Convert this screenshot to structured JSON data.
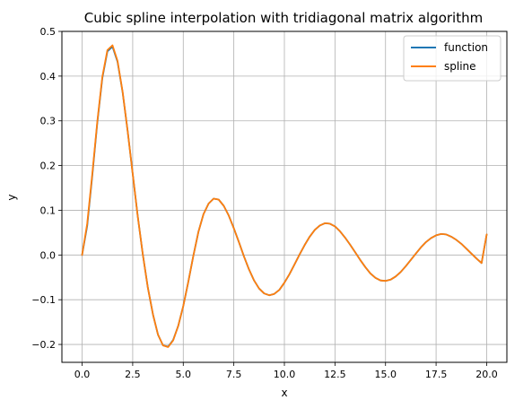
{
  "chart_data": {
    "type": "line",
    "title": "Cubic spline interpolation with tridiagonal matrix algorithm",
    "xlabel": "x",
    "ylabel": "y",
    "xlim": [
      -1.0,
      21.0
    ],
    "ylim": [
      -0.24,
      0.5
    ],
    "x_ticks": [
      0.0,
      2.5,
      5.0,
      7.5,
      10.0,
      12.5,
      15.0,
      17.5,
      20.0
    ],
    "x_tick_labels": [
      "0.0",
      "2.5",
      "5.0",
      "7.5",
      "10.0",
      "12.5",
      "15.0",
      "17.5",
      "20.0"
    ],
    "y_ticks": [
      -0.2,
      -0.1,
      0.0,
      0.1,
      0.2,
      0.3,
      0.4,
      0.5
    ],
    "y_tick_labels": [
      "−0.2",
      "−0.1",
      "0.0",
      "0.1",
      "0.2",
      "0.3",
      "0.4",
      "0.5"
    ],
    "grid": true,
    "legend_position": "top-right",
    "series": [
      {
        "name": "function",
        "color": "#1f77b4",
        "x": [
          0.0,
          0.25,
          0.5,
          0.75,
          1.0,
          1.25,
          1.5,
          1.75,
          2.0,
          2.25,
          2.5,
          2.75,
          3.0,
          3.25,
          3.5,
          3.75,
          4.0,
          4.25,
          4.5,
          4.75,
          5.0,
          5.25,
          5.5,
          5.75,
          6.0,
          6.25,
          6.5,
          6.75,
          7.0,
          7.25,
          7.5,
          7.75,
          8.0,
          8.25,
          8.5,
          8.75,
          9.0,
          9.25,
          9.5,
          9.75,
          10.0,
          10.25,
          10.5,
          10.75,
          11.0,
          11.25,
          11.5,
          11.75,
          12.0,
          12.25,
          12.5,
          12.75,
          13.0,
          13.25,
          13.5,
          13.75,
          14.0,
          14.25,
          14.5,
          14.75,
          15.0,
          15.25,
          15.5,
          15.75,
          16.0,
          16.25,
          16.5,
          16.75,
          17.0,
          17.25,
          17.5,
          17.75,
          18.0,
          18.25,
          18.5,
          18.75,
          19.0,
          19.25,
          19.5,
          19.75,
          20.0
        ],
        "y": [
          0.0,
          0.065,
          0.176,
          0.296,
          0.396,
          0.455,
          0.466,
          0.432,
          0.365,
          0.277,
          0.182,
          0.087,
          0.001,
          -0.073,
          -0.133,
          -0.178,
          -0.202,
          -0.205,
          -0.19,
          -0.159,
          -0.114,
          -0.06,
          -0.002,
          0.052,
          0.091,
          0.115,
          0.126,
          0.124,
          0.11,
          0.088,
          0.06,
          0.029,
          -0.003,
          -0.032,
          -0.057,
          -0.075,
          -0.086,
          -0.09,
          -0.087,
          -0.078,
          -0.062,
          -0.043,
          -0.021,
          0.001,
          0.022,
          0.041,
          0.056,
          0.066,
          0.071,
          0.07,
          0.064,
          0.053,
          0.039,
          0.023,
          0.006,
          -0.011,
          -0.027,
          -0.041,
          -0.051,
          -0.057,
          -0.058,
          -0.055,
          -0.048,
          -0.038,
          -0.025,
          -0.011,
          0.003,
          0.017,
          0.029,
          0.038,
          0.044,
          0.047,
          0.046,
          0.041,
          0.034,
          0.025,
          0.014,
          0.003,
          -0.008,
          -0.018,
          0.046
        ]
      },
      {
        "name": "spline",
        "color": "#ff7f0e",
        "x": [
          0.0,
          0.25,
          0.5,
          0.75,
          1.0,
          1.25,
          1.5,
          1.75,
          2.0,
          2.25,
          2.5,
          2.75,
          3.0,
          3.25,
          3.5,
          3.75,
          4.0,
          4.25,
          4.5,
          4.75,
          5.0,
          5.25,
          5.5,
          5.75,
          6.0,
          6.25,
          6.5,
          6.75,
          7.0,
          7.25,
          7.5,
          7.75,
          8.0,
          8.25,
          8.5,
          8.75,
          9.0,
          9.25,
          9.5,
          9.75,
          10.0,
          10.25,
          10.5,
          10.75,
          11.0,
          11.25,
          11.5,
          11.75,
          12.0,
          12.25,
          12.5,
          12.75,
          13.0,
          13.25,
          13.5,
          13.75,
          14.0,
          14.25,
          14.5,
          14.75,
          15.0,
          15.25,
          15.5,
          15.75,
          16.0,
          16.25,
          16.5,
          16.75,
          17.0,
          17.25,
          17.5,
          17.75,
          18.0,
          18.25,
          18.5,
          18.75,
          19.0,
          19.25,
          19.5,
          19.75,
          20.0
        ],
        "y": [
          0.0,
          0.07,
          0.18,
          0.299,
          0.399,
          0.458,
          0.469,
          0.434,
          0.366,
          0.277,
          0.182,
          0.087,
          0.001,
          -0.073,
          -0.133,
          -0.178,
          -0.202,
          -0.206,
          -0.191,
          -0.159,
          -0.114,
          -0.06,
          -0.002,
          0.052,
          0.091,
          0.115,
          0.126,
          0.124,
          0.11,
          0.088,
          0.06,
          0.029,
          -0.003,
          -0.032,
          -0.057,
          -0.075,
          -0.086,
          -0.09,
          -0.087,
          -0.078,
          -0.062,
          -0.043,
          -0.021,
          0.001,
          0.022,
          0.041,
          0.056,
          0.066,
          0.071,
          0.07,
          0.064,
          0.053,
          0.039,
          0.023,
          0.006,
          -0.011,
          -0.027,
          -0.041,
          -0.051,
          -0.057,
          -0.058,
          -0.055,
          -0.048,
          -0.038,
          -0.025,
          -0.011,
          0.003,
          0.017,
          0.029,
          0.038,
          0.044,
          0.047,
          0.046,
          0.041,
          0.034,
          0.025,
          0.014,
          0.003,
          -0.008,
          -0.018,
          0.046
        ]
      }
    ]
  }
}
